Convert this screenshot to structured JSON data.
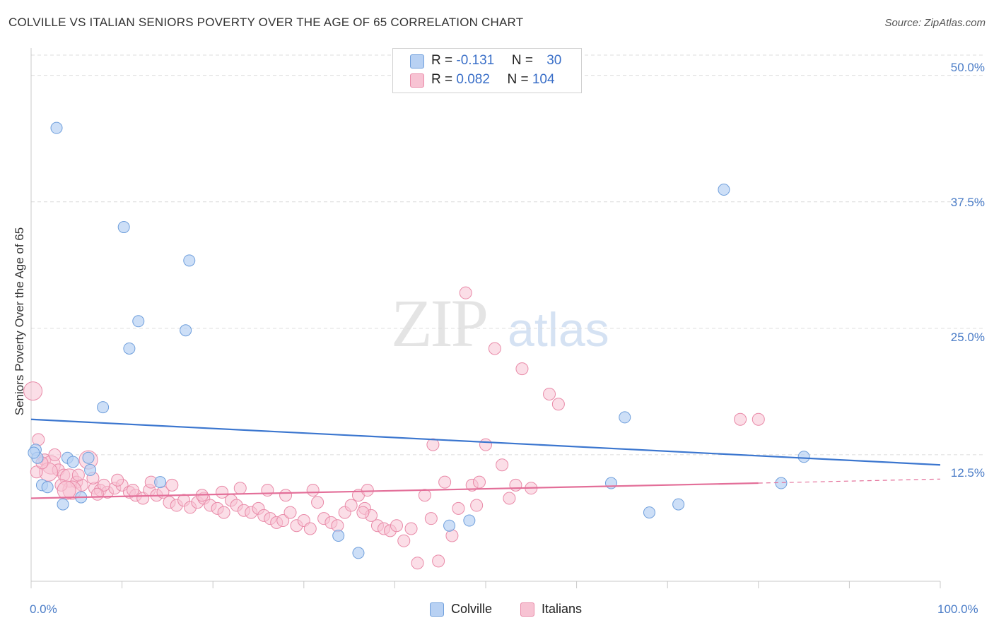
{
  "header": {
    "title": "COLVILLE VS ITALIAN SENIORS POVERTY OVER THE AGE OF 65 CORRELATION CHART",
    "source": "Source: ZipAtlas.com"
  },
  "watermark": {
    "zip": "ZIP",
    "atlas": "atlas"
  },
  "legend_top": {
    "rows": [
      {
        "r_label": "R = ",
        "r_value": "-0.131",
        "n_label": "N = ",
        "n_value": "30"
      },
      {
        "r_label": "R = ",
        "r_value": "0.082",
        "n_label": "N = ",
        "n_value": "104"
      }
    ]
  },
  "legend_bottom": {
    "colville": "Colville",
    "italians": "Italians"
  },
  "colors": {
    "colville_fill": "#b8d1f3",
    "colville_stroke": "#6f9fdc",
    "colville_line": "#3b76cf",
    "italians_fill": "#f7c3d3",
    "italians_stroke": "#e98aa8",
    "italians_line": "#e36f99",
    "grid": "#dcdcdc",
    "tick_text": "#4a7cc7"
  },
  "chart_data": {
    "type": "scatter",
    "title": "COLVILLE VS ITALIAN SENIORS POVERTY OVER THE AGE OF 65 CORRELATION CHART",
    "ylabel": "Seniors Poverty Over the Age of 65",
    "xlabel": "",
    "xlim": [
      0,
      100
    ],
    "ylim": [
      0,
      52
    ],
    "x_tick_labels": [
      "0.0%",
      "100.0%"
    ],
    "y_ticks": [
      12.5,
      25.0,
      37.5,
      50.0
    ],
    "y_tick_labels": [
      "12.5%",
      "25.0%",
      "37.5%",
      "50.0%"
    ],
    "grid": "horizontal dashed",
    "legend_position": "top-center",
    "series": [
      {
        "name": "Colville",
        "r": -0.131,
        "n": 30,
        "trend": {
          "x": [
            0,
            100
          ],
          "y": [
            16.0,
            11.5
          ]
        },
        "points": [
          [
            2.8,
            44.8
          ],
          [
            10.2,
            35.0
          ],
          [
            17.4,
            31.7
          ],
          [
            11.8,
            25.7
          ],
          [
            17.0,
            24.8
          ],
          [
            10.8,
            23.0
          ],
          [
            7.9,
            17.2
          ],
          [
            0.5,
            13.0
          ],
          [
            0.7,
            12.2
          ],
          [
            4.0,
            12.2
          ],
          [
            6.3,
            12.2
          ],
          [
            4.6,
            11.8
          ],
          [
            6.5,
            11.0
          ],
          [
            1.2,
            9.5
          ],
          [
            1.8,
            9.3
          ],
          [
            3.5,
            7.6
          ],
          [
            5.5,
            8.3
          ],
          [
            14.2,
            9.8
          ],
          [
            33.8,
            4.5
          ],
          [
            36.0,
            2.8
          ],
          [
            46.0,
            5.5
          ],
          [
            48.2,
            6.0
          ],
          [
            63.8,
            9.7
          ],
          [
            68.0,
            6.8
          ],
          [
            71.2,
            7.6
          ],
          [
            76.2,
            38.7
          ],
          [
            65.3,
            16.2
          ],
          [
            85.0,
            12.3
          ],
          [
            82.5,
            9.7
          ],
          [
            0.3,
            12.7
          ]
        ]
      },
      {
        "name": "Italians",
        "r": 0.082,
        "n": 104,
        "trend": {
          "x": [
            0,
            80
          ],
          "y": [
            8.2,
            9.7
          ]
        },
        "trend_dashed": {
          "x": [
            80,
            100
          ],
          "y": [
            9.7,
            10.1
          ]
        },
        "points": [
          [
            0.2,
            18.8
          ],
          [
            0.8,
            14.0
          ],
          [
            1.5,
            12.0
          ],
          [
            2.2,
            11.5
          ],
          [
            3.0,
            11.0
          ],
          [
            3.6,
            10.5
          ],
          [
            4.2,
            10.2
          ],
          [
            5.0,
            9.8
          ],
          [
            5.6,
            9.5
          ],
          [
            6.3,
            12.0
          ],
          [
            7.0,
            9.2
          ],
          [
            7.6,
            9.0
          ],
          [
            8.4,
            8.8
          ],
          [
            9.2,
            9.2
          ],
          [
            10.0,
            9.5
          ],
          [
            10.8,
            8.8
          ],
          [
            11.5,
            8.5
          ],
          [
            12.3,
            8.2
          ],
          [
            13.0,
            9.0
          ],
          [
            13.8,
            8.5
          ],
          [
            14.5,
            8.8
          ],
          [
            15.2,
            7.8
          ],
          [
            16.0,
            7.5
          ],
          [
            16.8,
            8.0
          ],
          [
            17.5,
            7.3
          ],
          [
            18.3,
            7.8
          ],
          [
            19.0,
            8.2
          ],
          [
            19.7,
            7.5
          ],
          [
            20.5,
            7.2
          ],
          [
            21.2,
            6.8
          ],
          [
            22.0,
            8.0
          ],
          [
            22.6,
            7.5
          ],
          [
            23.4,
            7.0
          ],
          [
            24.2,
            6.8
          ],
          [
            25.0,
            7.2
          ],
          [
            25.6,
            6.5
          ],
          [
            26.3,
            6.2
          ],
          [
            27.0,
            5.8
          ],
          [
            27.7,
            6.0
          ],
          [
            28.5,
            6.8
          ],
          [
            29.2,
            5.5
          ],
          [
            30.0,
            6.0
          ],
          [
            30.7,
            5.2
          ],
          [
            31.5,
            7.8
          ],
          [
            32.2,
            6.2
          ],
          [
            33.0,
            5.8
          ],
          [
            33.7,
            5.5
          ],
          [
            34.5,
            6.8
          ],
          [
            35.2,
            7.5
          ],
          [
            36.0,
            8.5
          ],
          [
            36.7,
            7.2
          ],
          [
            37.4,
            6.5
          ],
          [
            38.1,
            5.5
          ],
          [
            38.8,
            5.2
          ],
          [
            39.5,
            5.0
          ],
          [
            40.2,
            5.5
          ],
          [
            41.0,
            4.0
          ],
          [
            41.8,
            5.2
          ],
          [
            42.5,
            1.8
          ],
          [
            43.3,
            8.5
          ],
          [
            44.0,
            6.2
          ],
          [
            44.8,
            2.0
          ],
          [
            45.5,
            9.8
          ],
          [
            46.3,
            4.5
          ],
          [
            47.0,
            7.2
          ],
          [
            47.8,
            28.5
          ],
          [
            48.5,
            9.5
          ],
          [
            49.3,
            9.8
          ],
          [
            50.0,
            13.5
          ],
          [
            51.0,
            23.0
          ],
          [
            51.8,
            11.5
          ],
          [
            52.6,
            8.2
          ],
          [
            53.3,
            9.5
          ],
          [
            54.0,
            21.0
          ],
          [
            55.0,
            9.2
          ],
          [
            57.0,
            18.5
          ],
          [
            58.0,
            17.5
          ],
          [
            78.0,
            16.0
          ],
          [
            80.0,
            16.0
          ],
          [
            49.0,
            7.5
          ],
          [
            37.0,
            9.0
          ],
          [
            44.2,
            13.5
          ],
          [
            36.5,
            6.8
          ],
          [
            31.0,
            9.0
          ],
          [
            28.0,
            8.5
          ],
          [
            26.0,
            9.0
          ],
          [
            23.0,
            9.2
          ],
          [
            21.0,
            8.8
          ],
          [
            18.8,
            8.5
          ],
          [
            15.5,
            9.5
          ],
          [
            13.2,
            9.8
          ],
          [
            11.2,
            9.0
          ],
          [
            9.5,
            10.0
          ],
          [
            8.0,
            9.5
          ],
          [
            6.8,
            10.2
          ],
          [
            5.2,
            10.5
          ],
          [
            4.5,
            9.0
          ],
          [
            3.3,
            9.5
          ],
          [
            2.6,
            12.5
          ],
          [
            1.9,
            10.8
          ],
          [
            0.6,
            10.8
          ],
          [
            1.2,
            11.7
          ],
          [
            3.9,
            9.0
          ],
          [
            7.3,
            8.6
          ]
        ]
      }
    ]
  }
}
